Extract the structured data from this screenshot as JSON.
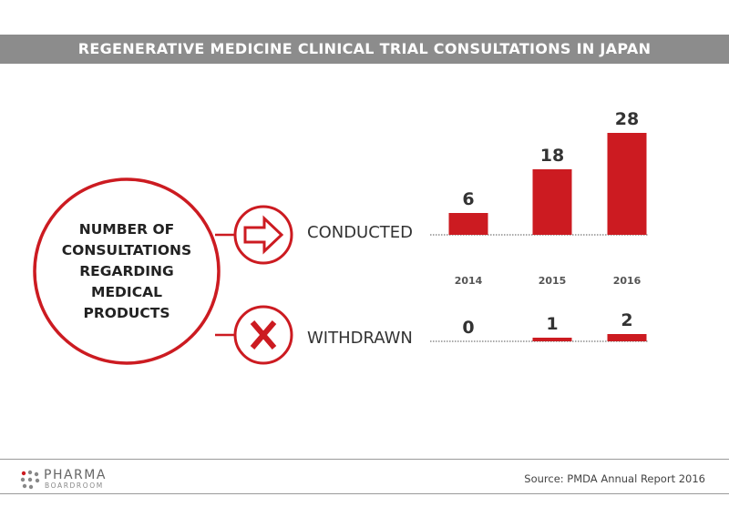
{
  "header": {
    "title": "REGENERATIVE MEDICINE CLINICAL TRIAL CONSULTATIONS IN JAPAN"
  },
  "circle_label": [
    "NUMBER OF",
    "CONSULTATIONS",
    "REGARDING",
    "MEDICAL",
    "PRODUCTS"
  ],
  "colors": {
    "bar": "#cc1b21",
    "header": "#8c8c8c",
    "ring": "#cc1b21"
  },
  "icons": {
    "conducted": "right-arrow-icon",
    "withdrawn": "x-mark-icon"
  },
  "chart_data": {
    "type": "bar",
    "categories": [
      "2014",
      "2015",
      "2016"
    ],
    "series": [
      {
        "name": "CONDUCTED",
        "values": [
          6,
          18,
          28
        ]
      },
      {
        "name": "WITHDRAWN",
        "values": [
          0,
          1,
          2
        ]
      }
    ],
    "title": "REGENERATIVE MEDICINE CLINICAL TRIAL CONSULTATIONS IN JAPAN",
    "ylim": [
      0,
      28
    ],
    "grid": false,
    "legend": "none"
  },
  "footer": {
    "logo_main": "PHARMA",
    "logo_sub": "BOARDROOM",
    "source": "Source: PMDA Annual Report 2016"
  }
}
